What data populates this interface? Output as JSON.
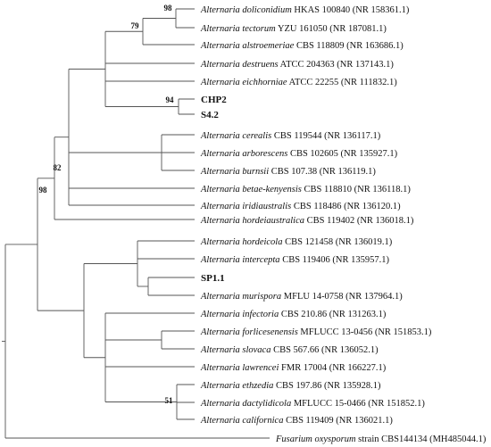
{
  "tree": {
    "tips": [
      {
        "species": "Alternaria doliconidium",
        "rest": "HKAS 100840 (NR 158361.1)"
      },
      {
        "species": "Alternaria tectorum",
        "rest": "YZU 161050 (NR 187081.1)"
      },
      {
        "species": "Alternaria alstroemeriae",
        "rest": "CBS 118809 (NR 163686.1)"
      },
      {
        "species": "Alternaria destruens",
        "rest": "ATCC 204363 (NR 137143.1)"
      },
      {
        "species": "Alternaria eichhorniae",
        "rest": "ATCC 22255 (NR 111832.1)"
      },
      {
        "species": "",
        "rest": "CHP2",
        "bold": true
      },
      {
        "species": "",
        "rest": "S4.2",
        "bold": true
      },
      {
        "species": "Alternaria cerealis",
        "rest": "CBS 119544 (NR 136117.1)"
      },
      {
        "species": "Alternaria arborescens",
        "rest": "CBS 102605 (NR 135927.1)"
      },
      {
        "species": "Alternaria burnsii",
        "rest": "CBS 107.38 (NR 136119.1)"
      },
      {
        "species": "Alternaria betae-kenyensis",
        "rest": "CBS 118810 (NR 136118.1)"
      },
      {
        "species": "Alternaria iridiaustralis",
        "rest": "CBS 118486 (NR 136120.1)"
      },
      {
        "species": "Alternaria hordeiaustralica",
        "rest": "CBS 119402 (NR 136018.1)"
      },
      {
        "species": "Alternaria hordeicola",
        "rest": "CBS 121458 (NR 136019.1)"
      },
      {
        "species": "Alternaria intercepta",
        "rest": "CBS 119406 (NR 135957.1)"
      },
      {
        "species": "",
        "rest": "SP1.1",
        "bold": true
      },
      {
        "species": "Alternaria murispora",
        "rest": "MFLU 14-0758 (NR 137964.1)"
      },
      {
        "species": "Alternaria infectoria",
        "rest": "CBS 210.86 (NR 131263.1)"
      },
      {
        "species": "Alternaria forlicesenensis",
        "rest": "MFLUCC 13-0456 (NR 151853.1)"
      },
      {
        "species": "Alternaria slovaca",
        "rest": "CBS 567.66 (NR 136052.1)"
      },
      {
        "species": "Alternaria lawrencei",
        "rest": "FMR 17004 (NR 166227.1)"
      },
      {
        "species": "Alternaria ethzedia",
        "rest": "CBS 197.86 (NR 135928.1)"
      },
      {
        "species": "Alternaria dactylidicola",
        "rest": "MFLUCC 15-0466 (NR 151852.1)"
      },
      {
        "species": "Alternaria californica",
        "rest": "CBS 119409 (NR 136021.1)"
      },
      {
        "species": "Fusarium oxysporum",
        "rest": "strain CBS144134 (MH485044.1)"
      }
    ],
    "bootstraps": [
      "98",
      "79",
      "94",
      "82",
      "98",
      "51"
    ]
  }
}
